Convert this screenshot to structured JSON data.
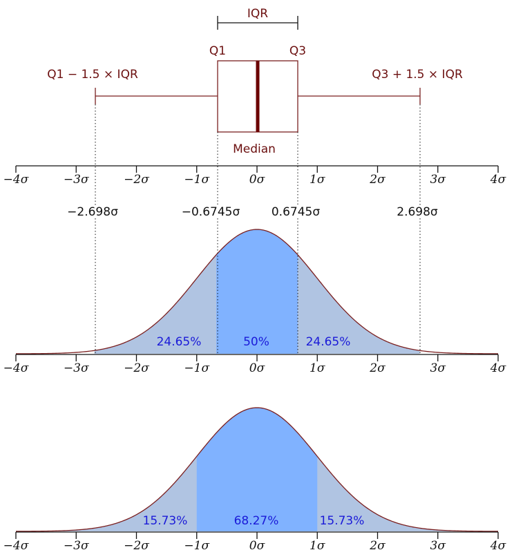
{
  "colors": {
    "box": "#7a1f1f",
    "median": "#6b0000",
    "curve": "#7a1f1f",
    "fill_center": "#80b2ff",
    "fill_sides": "#b0c4e2",
    "axis": "#111111",
    "text_labels": "#6b0f0f",
    "percent_text": "#1a1ad8"
  },
  "boxplot": {
    "iqr_label": "IQR",
    "q1_label": "Q1",
    "q3_label": "Q3",
    "lower_whisker_label": "Q1 − 1.5 × IQR",
    "upper_whisker_label": "Q3 + 1.5 × IQR",
    "median_label": "Median",
    "q1": -0.6745,
    "median": 0,
    "q3": 0.6745,
    "lower_whisker": -2.698,
    "upper_whisker": 2.698
  },
  "axis": {
    "min": -4,
    "max": 4,
    "ticks": [
      -4,
      -3,
      -2,
      -1,
      0,
      1,
      2,
      3,
      4
    ],
    "tick_labels": [
      "−4σ",
      "−3σ",
      "−2σ",
      "−1σ",
      "0σ",
      "1σ",
      "2σ",
      "3σ",
      "4σ"
    ]
  },
  "sigma_values": [
    {
      "x": -2.698,
      "label": "−2.698σ"
    },
    {
      "x": -0.6745,
      "label": "−0.6745σ"
    },
    {
      "x": 0.6745,
      "label": "0.6745σ"
    },
    {
      "x": 2.698,
      "label": "2.698σ"
    }
  ],
  "middle_curve": {
    "range": [
      -2.698,
      2.698
    ],
    "center_range": [
      -0.6745,
      0.6745
    ],
    "regions": [
      {
        "label": "24.65%",
        "x": -1.6
      },
      {
        "label": "50%",
        "x": 0
      },
      {
        "label": "24.65%",
        "x": 1.6
      }
    ]
  },
  "bottom_curve": {
    "range": [
      -4,
      4
    ],
    "center_range": [
      -1,
      1
    ],
    "regions": [
      {
        "label": "15.73%",
        "x": -1.5
      },
      {
        "label": "68.27%",
        "x": 0
      },
      {
        "label": "15.73%",
        "x": 1.5
      }
    ]
  }
}
